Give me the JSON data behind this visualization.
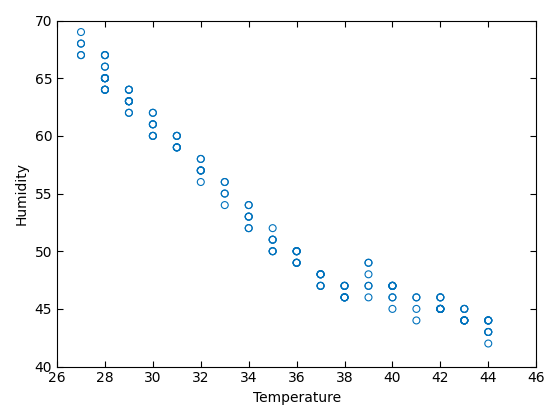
{
  "x": [
    27,
    27,
    27,
    27,
    27,
    28,
    28,
    28,
    28,
    28,
    28,
    28,
    28,
    28,
    28,
    28,
    28,
    28,
    28,
    28,
    29,
    29,
    29,
    29,
    29,
    29,
    29,
    29,
    29,
    29,
    30,
    30,
    30,
    30,
    30,
    30,
    30,
    30,
    31,
    31,
    31,
    31,
    31,
    31,
    31,
    32,
    32,
    32,
    32,
    32,
    32,
    32,
    33,
    33,
    33,
    33,
    33,
    34,
    34,
    34,
    34,
    34,
    34,
    34,
    35,
    35,
    35,
    35,
    35,
    35,
    35,
    36,
    36,
    36,
    36,
    36,
    36,
    36,
    36,
    36,
    37,
    37,
    37,
    37,
    37,
    37,
    37,
    37,
    38,
    38,
    38,
    38,
    38,
    38,
    38,
    38,
    38,
    39,
    39,
    39,
    39,
    39,
    39,
    40,
    40,
    40,
    40,
    40,
    40,
    40,
    40,
    40,
    41,
    41,
    41,
    41,
    42,
    42,
    42,
    42,
    42,
    42,
    42,
    42,
    42,
    42,
    42,
    43,
    43,
    43,
    43,
    43,
    43,
    43,
    43,
    43,
    43,
    44,
    44,
    44,
    44,
    44,
    44,
    44,
    44,
    44
  ],
  "y": [
    68,
    68,
    69,
    67,
    67,
    67,
    67,
    67,
    66,
    66,
    65,
    65,
    65,
    65,
    65,
    65,
    64,
    64,
    64,
    64,
    64,
    64,
    64,
    63,
    63,
    63,
    63,
    63,
    62,
    62,
    62,
    62,
    61,
    61,
    61,
    60,
    60,
    60,
    60,
    60,
    60,
    59,
    59,
    59,
    59,
    58,
    58,
    57,
    57,
    57,
    57,
    56,
    56,
    56,
    55,
    55,
    54,
    54,
    54,
    53,
    53,
    53,
    52,
    52,
    52,
    51,
    51,
    51,
    50,
    50,
    50,
    50,
    50,
    50,
    50,
    50,
    49,
    49,
    49,
    49,
    48,
    48,
    48,
    48,
    48,
    47,
    47,
    47,
    47,
    47,
    47,
    47,
    46,
    46,
    46,
    46,
    46,
    49,
    49,
    48,
    47,
    47,
    46,
    47,
    47,
    47,
    47,
    47,
    47,
    46,
    46,
    45,
    46,
    46,
    45,
    44,
    46,
    46,
    46,
    45,
    45,
    45,
    45,
    45,
    45,
    45,
    45,
    45,
    45,
    45,
    44,
    44,
    44,
    44,
    44,
    44,
    44,
    44,
    44,
    44,
    44,
    44,
    43,
    43,
    43,
    42
  ],
  "marker_color": "#0072bd",
  "marker_facecolor": "none",
  "marker_style": "o",
  "marker_size": 5,
  "linewidth": 0.8,
  "xlabel": "Temperature",
  "ylabel": "Humidity",
  "xlim": [
    26,
    46
  ],
  "ylim": [
    40,
    70
  ],
  "xticks": [
    26,
    28,
    30,
    32,
    34,
    36,
    38,
    40,
    42,
    44,
    46
  ],
  "yticks": [
    40,
    45,
    50,
    55,
    60,
    65,
    70
  ],
  "background_color": "#ffffff",
  "grid": false,
  "figsize": [
    5.6,
    4.2
  ],
  "dpi": 100
}
